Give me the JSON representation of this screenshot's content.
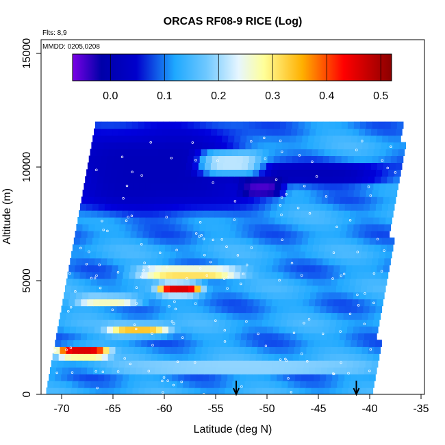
{
  "chart_data": {
    "type": "heatmap",
    "title": "ORCAS RF08-9 RICE (Log)",
    "flights_note": "Flts: 8,9",
    "date_note": "MMDD: 0205,0208",
    "xlabel": "Latitude (deg N)",
    "ylabel": "Altitude (m)",
    "xlim": [
      -72,
      -35
    ],
    "ylim": [
      0,
      15500
    ],
    "x_ticks": [
      "-70",
      "-65",
      "-60",
      "-55",
      "-50",
      "-45",
      "-40",
      "-35"
    ],
    "y_ticks": [
      "0",
      "5000",
      "10000",
      "15000"
    ],
    "colorbar": {
      "range": [
        -0.07,
        0.52
      ],
      "ticks": [
        "0.0",
        "0.1",
        "0.2",
        "0.3",
        "0.4",
        "0.5"
      ],
      "tick_values": [
        0.0,
        0.1,
        0.2,
        0.3,
        0.4,
        0.5
      ],
      "colors": [
        "#7a00e6",
        "#0000a8",
        "#0033ff",
        "#1ea8ff",
        "#d8f0ff",
        "#ffff99",
        "#ffc000",
        "#ff0000",
        "#8b0000"
      ]
    },
    "background_value": 0.1,
    "features": [
      {
        "region": "upper dark band",
        "lat": [
          -70,
          -52
        ],
        "alt": [
          8000,
          11800
        ],
        "value": 0.0
      },
      {
        "region": "upper dark band east",
        "lat": [
          -55,
          -38
        ],
        "alt": [
          9300,
          10100
        ],
        "value": 0.0
      },
      {
        "region": "minimum",
        "lat": [
          -52,
          -49
        ],
        "alt": [
          8800,
          9400
        ],
        "value": -0.05
      },
      {
        "region": "bright patch",
        "lat": [
          -56,
          -51
        ],
        "alt": [
          9800,
          10600
        ],
        "value": 0.2
      },
      {
        "region": "red layer",
        "lat": [
          -70,
          -66
        ],
        "alt": [
          1750,
          2050
        ],
        "value": 0.45
      },
      {
        "region": "orange layer",
        "lat": [
          -65,
          -60
        ],
        "alt": [
          2700,
          3000
        ],
        "value": 0.32
      },
      {
        "region": "yellow layer",
        "lat": [
          -68,
          -63
        ],
        "alt": [
          3950,
          4250
        ],
        "value": 0.25
      },
      {
        "region": "red core",
        "lat": [
          -60,
          -57
        ],
        "alt": [
          4500,
          4800
        ],
        "value": 0.45
      },
      {
        "region": "yellow layer 2",
        "lat": [
          -62,
          -53
        ],
        "alt": [
          5200,
          5500
        ],
        "value": 0.3
      },
      {
        "region": "bright band",
        "lat": [
          -65,
          -40
        ],
        "alt": [
          1000,
          1400
        ],
        "value": 0.18
      }
    ],
    "arrows_at_lat": [
      -53,
      -41.3
    ]
  }
}
